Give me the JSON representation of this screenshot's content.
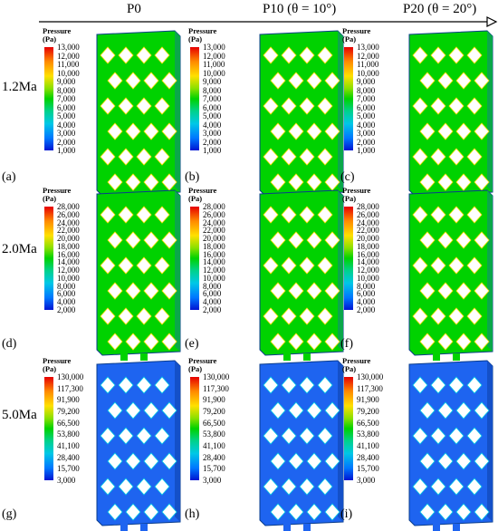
{
  "header": {
    "columns": [
      "P0",
      "P10 (θ = 10°)",
      "P20 (θ = 20°)"
    ]
  },
  "rows": [
    {
      "label": "1.2Ma",
      "legend": {
        "title": "Pressure",
        "unit": "(Pa)",
        "ticks": [
          "13,000",
          "12,000",
          "11,000",
          "10,000",
          "9,000",
          "8,000",
          "7,000",
          "6,000",
          "5,000",
          "4,000",
          "3,000",
          "2,000",
          "1,000"
        ]
      },
      "panels": [
        "(a)",
        "(b)",
        "(c)"
      ]
    },
    {
      "label": "2.0Ma",
      "legend": {
        "title": "Pressure",
        "unit": "(Pa)",
        "ticks": [
          "28,000",
          "26,000",
          "24,000",
          "22,000",
          "20,000",
          "18,000",
          "16,000",
          "14,000",
          "12,000",
          "10,000",
          "8,000",
          "6,000",
          "4,000",
          "2,000"
        ]
      },
      "panels": [
        "(d)",
        "(e)",
        "(f)"
      ]
    },
    {
      "label": "5.0Ma",
      "legend": {
        "title": "Pressure",
        "unit": "(Pa)",
        "ticks": [
          "130,000",
          "117,300",
          "91,900",
          "79,200",
          "66,500",
          "53,800",
          "41,100",
          "28,400",
          "15,700",
          "3,000"
        ]
      },
      "panels": [
        "(g)",
        "(h)",
        "(i)"
      ]
    }
  ],
  "colors": {
    "low": "#0014d2",
    "mid": "#00d200",
    "high": "#e60000",
    "lattice_5ma": "#1e64f0"
  }
}
